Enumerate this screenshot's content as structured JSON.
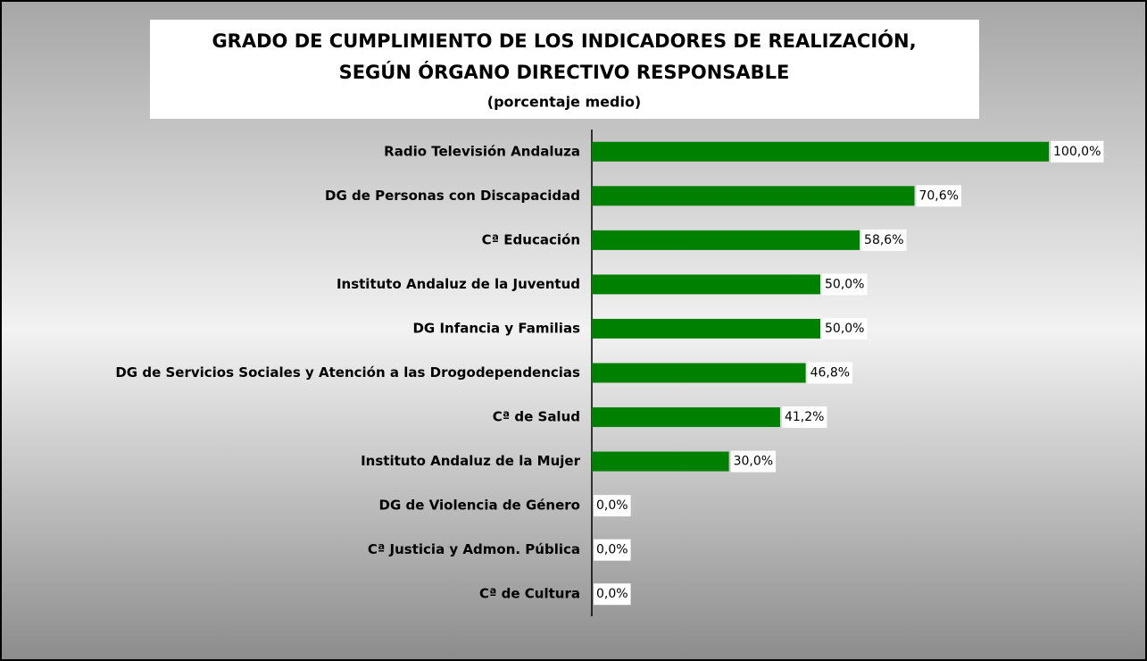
{
  "chart_data": {
    "type": "barh",
    "title": [
      "GRADO DE CUMPLIMIENTO DE LOS INDICADORES DE REALIZACIÓN,",
      "SEGÚN ÓRGANO DIRECTIVO RESPONSABLE"
    ],
    "subtitle": "(porcentaje medio)",
    "categories": [
      "Radio Televisión Andaluza",
      "DG de Personas con Discapacidad",
      "Cª Educación",
      "Instituto Andaluz de la Juventud",
      "DG Infancia y Familias",
      "DG de Servicios Sociales y Atención a las Drogodependencias",
      "Cª de Salud",
      "Instituto Andaluz de la Mujer",
      "DG de Violencia de Género",
      "Cª Justicia y Admon. Pública",
      "Cª de Cultura"
    ],
    "values": [
      100,
      70.6,
      58.6,
      50,
      50,
      46.8,
      41.2,
      30,
      0,
      0,
      0
    ],
    "value_labels": [
      "100,0%",
      "70,6%",
      "58,6%",
      "50,0%",
      "50,0%",
      "46,8%",
      "41,2%",
      "30,0%",
      "0,0%",
      "0,0%",
      "0,0%"
    ],
    "color": "#008000",
    "xlim": [
      0,
      100
    ]
  }
}
